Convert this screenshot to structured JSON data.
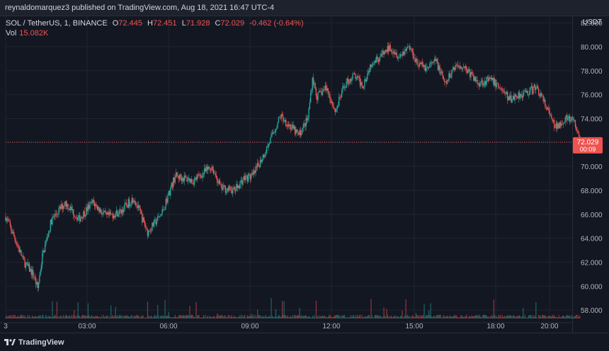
{
  "header": {
    "publisher": "reynaldomarquez3 published on TradingView.com, Aug 18, 2021 16:47 UTC-4"
  },
  "legend": {
    "symbol": "SOL / TetherUS, 1, BINANCE",
    "open_label": "O",
    "open": "72.445",
    "high_label": "H",
    "high": "72.451",
    "low_label": "L",
    "low": "71.928",
    "close_label": "C",
    "close": "72.029",
    "change": "-0.462 (-0.64%)",
    "vol_label": "Vol",
    "vol": "15.082K"
  },
  "price_badge": {
    "price": "72.029",
    "countdown": "00:09"
  },
  "footer": {
    "brand": "TradingView"
  },
  "colors": {
    "up": "#26a69a",
    "down": "#ef5350",
    "background": "#131722",
    "grid": "#1f2430",
    "text": "#d1d4dc",
    "price_line": "#ef5350"
  },
  "chart_data": {
    "type": "candlestick",
    "currency": "USDT",
    "ylim": [
      57.3,
      82.6
    ],
    "yticks": [
      "58.000",
      "60.000",
      "62.000",
      "64.000",
      "66.000",
      "68.000",
      "70.000",
      "72.000",
      "74.000",
      "76.000",
      "78.000",
      "80.000",
      "82.000"
    ],
    "xticks": [
      "3",
      "03:00",
      "06:00",
      "09:00",
      "12:00",
      "15:00",
      "18:00",
      "20:00"
    ],
    "grid": true,
    "last_price": 72.029,
    "price_path": [
      {
        "t": "00:00",
        "v": 65.8
      },
      {
        "t": "00:20",
        "v": 64.0
      },
      {
        "t": "00:40",
        "v": 62.0
      },
      {
        "t": "01:00",
        "v": 61.0
      },
      {
        "t": "01:10",
        "v": 59.8
      },
      {
        "t": "01:20",
        "v": 62.5
      },
      {
        "t": "01:40",
        "v": 65.5
      },
      {
        "t": "02:10",
        "v": 67.0
      },
      {
        "t": "02:40",
        "v": 65.6
      },
      {
        "t": "03:10",
        "v": 67.0
      },
      {
        "t": "03:40",
        "v": 65.8
      },
      {
        "t": "04:10",
        "v": 66.2
      },
      {
        "t": "04:40",
        "v": 67.4
      },
      {
        "t": "05:10",
        "v": 64.5
      },
      {
        "t": "05:40",
        "v": 66.0
      },
      {
        "t": "06:10",
        "v": 69.2
      },
      {
        "t": "06:50",
        "v": 68.8
      },
      {
        "t": "07:30",
        "v": 70.0
      },
      {
        "t": "07:50",
        "v": 68.2
      },
      {
        "t": "08:20",
        "v": 68.0
      },
      {
        "t": "08:40",
        "v": 69.0
      },
      {
        "t": "09:00",
        "v": 69.2
      },
      {
        "t": "09:30",
        "v": 71.5
      },
      {
        "t": "10:00",
        "v": 74.2
      },
      {
        "t": "10:20",
        "v": 73.4
      },
      {
        "t": "10:40",
        "v": 72.6
      },
      {
        "t": "11:00",
        "v": 74.0
      },
      {
        "t": "11:10",
        "v": 77.4
      },
      {
        "t": "11:20",
        "v": 75.8
      },
      {
        "t": "11:40",
        "v": 76.6
      },
      {
        "t": "12:00",
        "v": 74.6
      },
      {
        "t": "12:20",
        "v": 76.8
      },
      {
        "t": "12:40",
        "v": 77.6
      },
      {
        "t": "13:00",
        "v": 76.8
      },
      {
        "t": "13:20",
        "v": 78.8
      },
      {
        "t": "13:40",
        "v": 79.2
      },
      {
        "t": "14:00",
        "v": 80.0
      },
      {
        "t": "14:20",
        "v": 79.2
      },
      {
        "t": "14:40",
        "v": 80.1
      },
      {
        "t": "15:00",
        "v": 78.6
      },
      {
        "t": "15:20",
        "v": 78.2
      },
      {
        "t": "15:40",
        "v": 78.8
      },
      {
        "t": "16:00",
        "v": 76.8
      },
      {
        "t": "16:20",
        "v": 78.4
      },
      {
        "t": "16:40",
        "v": 78.4
      },
      {
        "t": "17:10",
        "v": 77.0
      },
      {
        "t": "17:40",
        "v": 77.2
      },
      {
        "t": "18:00",
        "v": 76.6
      },
      {
        "t": "18:20",
        "v": 75.6
      },
      {
        "t": "18:40",
        "v": 76.0
      },
      {
        "t": "19:00",
        "v": 76.2
      },
      {
        "t": "19:20",
        "v": 76.6
      },
      {
        "t": "19:40",
        "v": 75.0
      },
      {
        "t": "20:00",
        "v": 73.2
      },
      {
        "t": "20:20",
        "v": 74.0
      },
      {
        "t": "20:40",
        "v": 73.8
      },
      {
        "t": "20:55",
        "v": 72.03
      }
    ]
  }
}
